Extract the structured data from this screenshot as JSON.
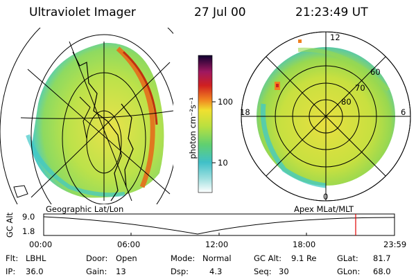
{
  "header": {
    "title": "Ultraviolet Imager",
    "date": "27 Jul 00",
    "time": "21:23:49 UT"
  },
  "colorbar": {
    "label": "photon cm⁻²s⁻¹",
    "ticks": [
      "100",
      "10"
    ]
  },
  "left_panel": {
    "caption": "Geographic Lat/Lon"
  },
  "right_panel": {
    "caption": "Apex MLat/MLT",
    "mlt_labels": [
      "12",
      "18",
      "6",
      "0"
    ],
    "mlat_labels": [
      "60",
      "70",
      "80"
    ]
  },
  "altitude_plot": {
    "ylabel": "GC Alt",
    "yticks": [
      "9.0",
      "1.8"
    ],
    "xticks": [
      "00:00",
      "06:00",
      "12:00",
      "18:00",
      "23:59"
    ],
    "current_time_marker": "21:23:49"
  },
  "status": {
    "flt_label": "Flt:",
    "flt_value": "LBHL",
    "ip_label": "IP:",
    "ip_value": "36.0",
    "door_label": "Door:",
    "door_value": "Open",
    "gain_label": "Gain:",
    "gain_value": "13",
    "mode_label": "Mode:",
    "mode_value": "Normal",
    "dsp_label": "Dsp:",
    "dsp_value": "4.3",
    "gcalt_label": "GC Alt:",
    "gcalt_value": "9.1 Re",
    "seq_label": "Seq:",
    "seq_value": "30",
    "glat_label": "GLat:",
    "glat_value": "81.7",
    "glon_label": "GLon:",
    "glon_value": "68.0"
  },
  "colors": {
    "marker": "#e00000",
    "image_green": "#a8e040",
    "image_yellow": "#f0e040",
    "image_cyan": "#40c8c8"
  }
}
